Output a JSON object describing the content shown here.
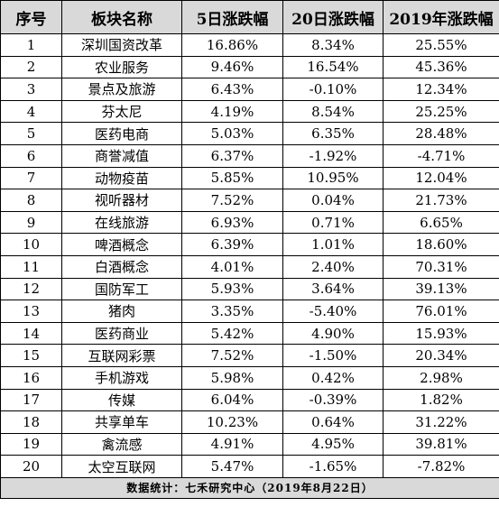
{
  "headers": [
    "序号",
    "板块名称",
    "5日涨跌幅",
    "20日涨跌幅",
    "2019年涨跌幅"
  ],
  "rows": [
    [
      "1",
      "深圳国资改革",
      "16.86%",
      "8.34%",
      "25.55%"
    ],
    [
      "2",
      "农业服务",
      "9.46%",
      "16.54%",
      "45.36%"
    ],
    [
      "3",
      "景点及旅游",
      "6.43%",
      "-0.10%",
      "12.34%"
    ],
    [
      "4",
      "芬太尼",
      "4.19%",
      "8.54%",
      "25.25%"
    ],
    [
      "5",
      "医药电商",
      "5.03%",
      "6.35%",
      "28.48%"
    ],
    [
      "6",
      "商誉减值",
      "6.37%",
      "-1.92%",
      "-4.71%"
    ],
    [
      "7",
      "动物疫苗",
      "5.85%",
      "10.95%",
      "12.04%"
    ],
    [
      "8",
      "视听器材",
      "7.52%",
      "0.04%",
      "21.73%"
    ],
    [
      "9",
      "在线旅游",
      "6.93%",
      "0.71%",
      "6.65%"
    ],
    [
      "10",
      "啤酒概念",
      "6.39%",
      "1.01%",
      "18.60%"
    ],
    [
      "11",
      "白酒概念",
      "4.01%",
      "2.40%",
      "70.31%"
    ],
    [
      "12",
      "国防军工",
      "5.93%",
      "3.64%",
      "39.13%"
    ],
    [
      "13",
      "猪肉",
      "3.35%",
      "-5.40%",
      "76.01%"
    ],
    [
      "14",
      "医药商业",
      "5.42%",
      "4.90%",
      "15.93%"
    ],
    [
      "15",
      "互联网彩票",
      "7.52%",
      "-1.50%",
      "20.34%"
    ],
    [
      "16",
      "手机游戏",
      "5.98%",
      "0.42%",
      "2.98%"
    ],
    [
      "17",
      "传媒",
      "6.04%",
      "-0.39%",
      "1.82%"
    ],
    [
      "18",
      "共享单车",
      "10.23%",
      "0.64%",
      "31.22%"
    ],
    [
      "19",
      "禽流感",
      "4.91%",
      "4.95%",
      "39.81%"
    ],
    [
      "20",
      "太空互联网",
      "5.47%",
      "-1.65%",
      "-7.82%"
    ]
  ],
  "footer": "数据统计：七禾研究中心（2019年8月22日）"
}
